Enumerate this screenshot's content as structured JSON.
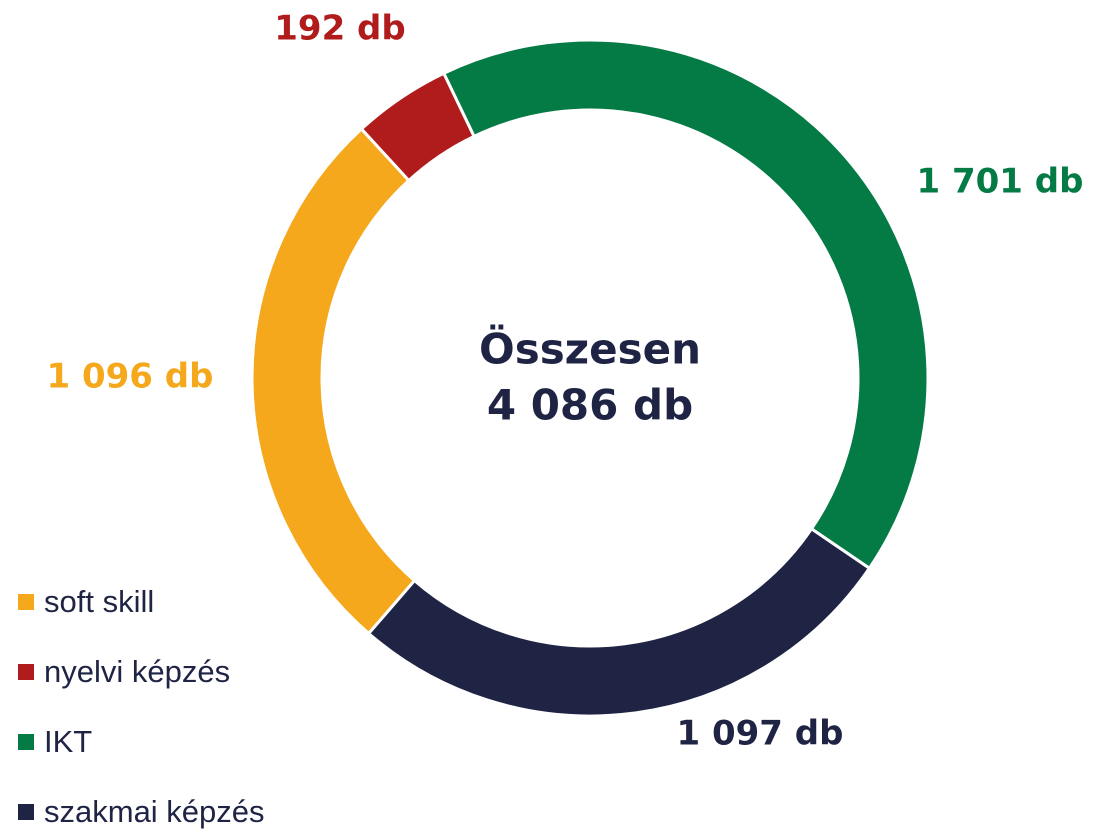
{
  "chart_data": {
    "type": "donut",
    "categories": [
      "soft skill",
      "nyelvi képzés",
      "IKT",
      "szakmai képzés"
    ],
    "values": [
      1096,
      192,
      1701,
      1097
    ],
    "value_labels": [
      "1 096 db",
      "192 db",
      "1 701 db",
      "1 097 db"
    ],
    "colors": [
      "#F5A81C",
      "#B01C1C",
      "#047A45",
      "#1F2444"
    ],
    "center_text": [
      "Összesen",
      "4 086 db"
    ],
    "legend": "bottom-left"
  }
}
